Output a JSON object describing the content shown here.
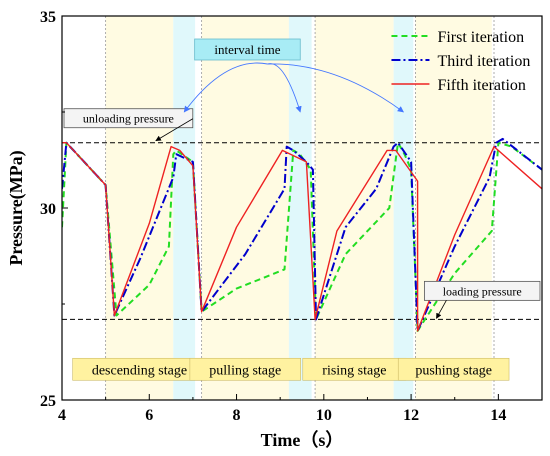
{
  "chart_data": {
    "type": "line",
    "xlabel": "Time（s）",
    "ylabel": "Pressure(MPa)",
    "xlim": [
      4,
      15
    ],
    "ylim": [
      25,
      35
    ],
    "xticks": [
      4,
      6,
      8,
      10,
      12,
      14
    ],
    "yticks": [
      25,
      30,
      35
    ],
    "grid": false,
    "legend": {
      "position": "top-right",
      "entries": [
        "First iteration",
        "Third iteration",
        "Fifth iteration"
      ]
    },
    "series": [
      {
        "name": "First iteration",
        "color": "#22dd22",
        "dash": "dashed",
        "x": [
          4.0,
          4.1,
          5.0,
          5.25,
          6.0,
          6.45,
          6.55,
          6.62,
          7.0,
          7.2,
          8.0,
          9.1,
          9.3,
          9.45,
          9.7,
          9.82,
          10.5,
          11.5,
          11.7,
          11.85,
          12.0,
          12.15,
          13.0,
          13.85,
          14.0,
          14.3,
          15.0
        ],
        "y": [
          29.5,
          31.7,
          30.6,
          27.2,
          28.0,
          29.0,
          31.4,
          31.5,
          31.2,
          27.3,
          27.9,
          28.4,
          31.5,
          31.4,
          31.0,
          27.1,
          28.8,
          30.0,
          31.7,
          31.4,
          31.0,
          26.8,
          28.3,
          29.4,
          31.7,
          31.6,
          31.0
        ]
      },
      {
        "name": "Third iteration",
        "color": "#0000cc",
        "dash": "dashdot",
        "x": [
          4.0,
          4.1,
          5.0,
          5.2,
          5.8,
          6.55,
          6.62,
          7.0,
          7.2,
          8.2,
          9.1,
          9.15,
          9.3,
          9.6,
          9.75,
          9.82,
          10.5,
          11.2,
          11.6,
          11.7,
          12.0,
          12.15,
          13.0,
          13.8,
          13.95,
          14.1,
          15.0
        ],
        "y": [
          30.5,
          31.7,
          30.6,
          27.2,
          28.7,
          30.8,
          31.4,
          31.2,
          27.3,
          28.8,
          30.5,
          31.6,
          31.5,
          31.2,
          31.0,
          27.1,
          29.5,
          30.5,
          31.6,
          31.7,
          31.2,
          26.8,
          29.0,
          30.8,
          31.7,
          31.8,
          31.0
        ]
      },
      {
        "name": "Fifth iteration",
        "color": "#ee2222",
        "dash": "solid",
        "x": [
          4.0,
          4.1,
          5.0,
          5.2,
          6.0,
          6.5,
          6.7,
          7.0,
          7.2,
          8.0,
          9.05,
          9.6,
          9.8,
          10.3,
          11.45,
          11.65,
          12.15,
          12.15,
          13.0,
          13.9,
          15.0
        ],
        "y": [
          31.7,
          31.7,
          30.6,
          27.2,
          29.6,
          31.6,
          31.5,
          31.1,
          27.3,
          29.5,
          31.5,
          31.2,
          27.1,
          29.4,
          31.5,
          31.5,
          30.7,
          26.8,
          29.3,
          31.6,
          30.5
        ]
      }
    ],
    "reference_lines": [
      {
        "label": "unloading pressure",
        "y": 31.7
      },
      {
        "label": "loading pressure",
        "y": 27.1
      }
    ],
    "stage_bands": [
      {
        "label": "descending stage",
        "x": [
          5.0,
          6.55
        ]
      },
      {
        "label": "pulling stage",
        "x": [
          7.2,
          9.2
        ]
      },
      {
        "label": "rising stage",
        "x": [
          9.8,
          11.6
        ]
      },
      {
        "label": "pushing stage",
        "x": [
          12.1,
          13.85
        ]
      }
    ],
    "interval_bands": [
      [
        6.55,
        7.05
      ],
      [
        9.2,
        9.72
      ],
      [
        11.6,
        12.05
      ]
    ],
    "stage_dividers": [
      5.0,
      7.2,
      9.8,
      12.1,
      13.9
    ],
    "annotation": {
      "text": "interval time"
    },
    "colors": {
      "stage_fill": "#fffbe2",
      "interval_fill": "#e0f8fb",
      "annotation_fill": "#a8ecf5",
      "stage_label_fill": "#fff2a0",
      "arrow": "#4477ff"
    }
  }
}
